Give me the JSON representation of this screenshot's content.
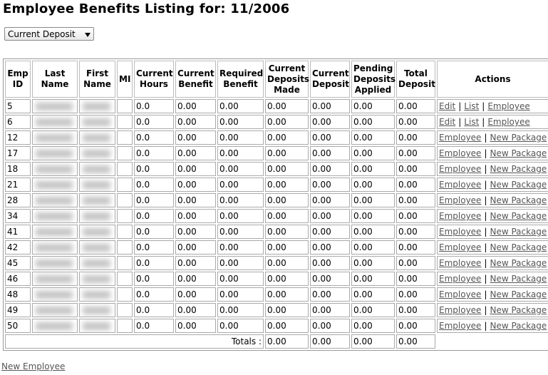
{
  "header": {
    "title": "Employee Benefits Listing for: 11/2006"
  },
  "filter": {
    "selected": "Current Deposit"
  },
  "table": {
    "columns": [
      "Emp ID",
      "Last Name",
      "First Name",
      "MI",
      "Current Hours",
      "Current Benefit",
      "Required Benefit",
      "Current Deposits Made",
      "Current Deposit",
      "Pending Deposits Applied",
      "Total Deposit",
      "Actions"
    ],
    "separator": "|",
    "rows": [
      {
        "emp_id": "5",
        "hours": "0.0",
        "benefit": "0.00",
        "required": "0.00",
        "made": "0.00",
        "deposit": "0.00",
        "pending": "0.00",
        "total": "0.00",
        "actions": [
          "Edit",
          "List",
          "Employee"
        ]
      },
      {
        "emp_id": "6",
        "hours": "0.0",
        "benefit": "0.00",
        "required": "0.00",
        "made": "0.00",
        "deposit": "0.00",
        "pending": "0.00",
        "total": "0.00",
        "actions": [
          "Edit",
          "List",
          "Employee"
        ]
      },
      {
        "emp_id": "12",
        "hours": "0.0",
        "benefit": "0.00",
        "required": "0.00",
        "made": "0.00",
        "deposit": "0.00",
        "pending": "0.00",
        "total": "0.00",
        "actions": [
          "Employee",
          "New Package"
        ]
      },
      {
        "emp_id": "17",
        "hours": "0.0",
        "benefit": "0.00",
        "required": "0.00",
        "made": "0.00",
        "deposit": "0.00",
        "pending": "0.00",
        "total": "0.00",
        "actions": [
          "Employee",
          "New Package"
        ]
      },
      {
        "emp_id": "18",
        "hours": "0.0",
        "benefit": "0.00",
        "required": "0.00",
        "made": "0.00",
        "deposit": "0.00",
        "pending": "0.00",
        "total": "0.00",
        "actions": [
          "Employee",
          "New Package"
        ]
      },
      {
        "emp_id": "21",
        "hours": "0.0",
        "benefit": "0.00",
        "required": "0.00",
        "made": "0.00",
        "deposit": "0.00",
        "pending": "0.00",
        "total": "0.00",
        "actions": [
          "Employee",
          "New Package"
        ]
      },
      {
        "emp_id": "28",
        "hours": "0.0",
        "benefit": "0.00",
        "required": "0.00",
        "made": "0.00",
        "deposit": "0.00",
        "pending": "0.00",
        "total": "0.00",
        "actions": [
          "Employee",
          "New Package"
        ]
      },
      {
        "emp_id": "34",
        "hours": "0.0",
        "benefit": "0.00",
        "required": "0.00",
        "made": "0.00",
        "deposit": "0.00",
        "pending": "0.00",
        "total": "0.00",
        "actions": [
          "Employee",
          "New Package"
        ]
      },
      {
        "emp_id": "41",
        "hours": "0.0",
        "benefit": "0.00",
        "required": "0.00",
        "made": "0.00",
        "deposit": "0.00",
        "pending": "0.00",
        "total": "0.00",
        "actions": [
          "Employee",
          "New Package"
        ]
      },
      {
        "emp_id": "42",
        "hours": "0.0",
        "benefit": "0.00",
        "required": "0.00",
        "made": "0.00",
        "deposit": "0.00",
        "pending": "0.00",
        "total": "0.00",
        "actions": [
          "Employee",
          "New Package"
        ]
      },
      {
        "emp_id": "45",
        "hours": "0.0",
        "benefit": "0.00",
        "required": "0.00",
        "made": "0.00",
        "deposit": "0.00",
        "pending": "0.00",
        "total": "0.00",
        "actions": [
          "Employee",
          "New Package"
        ]
      },
      {
        "emp_id": "46",
        "hours": "0.0",
        "benefit": "0.00",
        "required": "0.00",
        "made": "0.00",
        "deposit": "0.00",
        "pending": "0.00",
        "total": "0.00",
        "actions": [
          "Employee",
          "New Package"
        ]
      },
      {
        "emp_id": "48",
        "hours": "0.0",
        "benefit": "0.00",
        "required": "0.00",
        "made": "0.00",
        "deposit": "0.00",
        "pending": "0.00",
        "total": "0.00",
        "actions": [
          "Employee",
          "New Package"
        ]
      },
      {
        "emp_id": "49",
        "hours": "0.0",
        "benefit": "0.00",
        "required": "0.00",
        "made": "0.00",
        "deposit": "0.00",
        "pending": "0.00",
        "total": "0.00",
        "actions": [
          "Employee",
          "New Package"
        ]
      },
      {
        "emp_id": "50",
        "hours": "0.0",
        "benefit": "0.00",
        "required": "0.00",
        "made": "0.00",
        "deposit": "0.00",
        "pending": "0.00",
        "total": "0.00",
        "actions": [
          "Employee",
          "New Package"
        ]
      }
    ],
    "totals": {
      "label": "Totals :",
      "values": [
        "0.00",
        "0.00",
        "0.00",
        "0.00"
      ]
    }
  },
  "footer": {
    "link": "New Employee"
  }
}
